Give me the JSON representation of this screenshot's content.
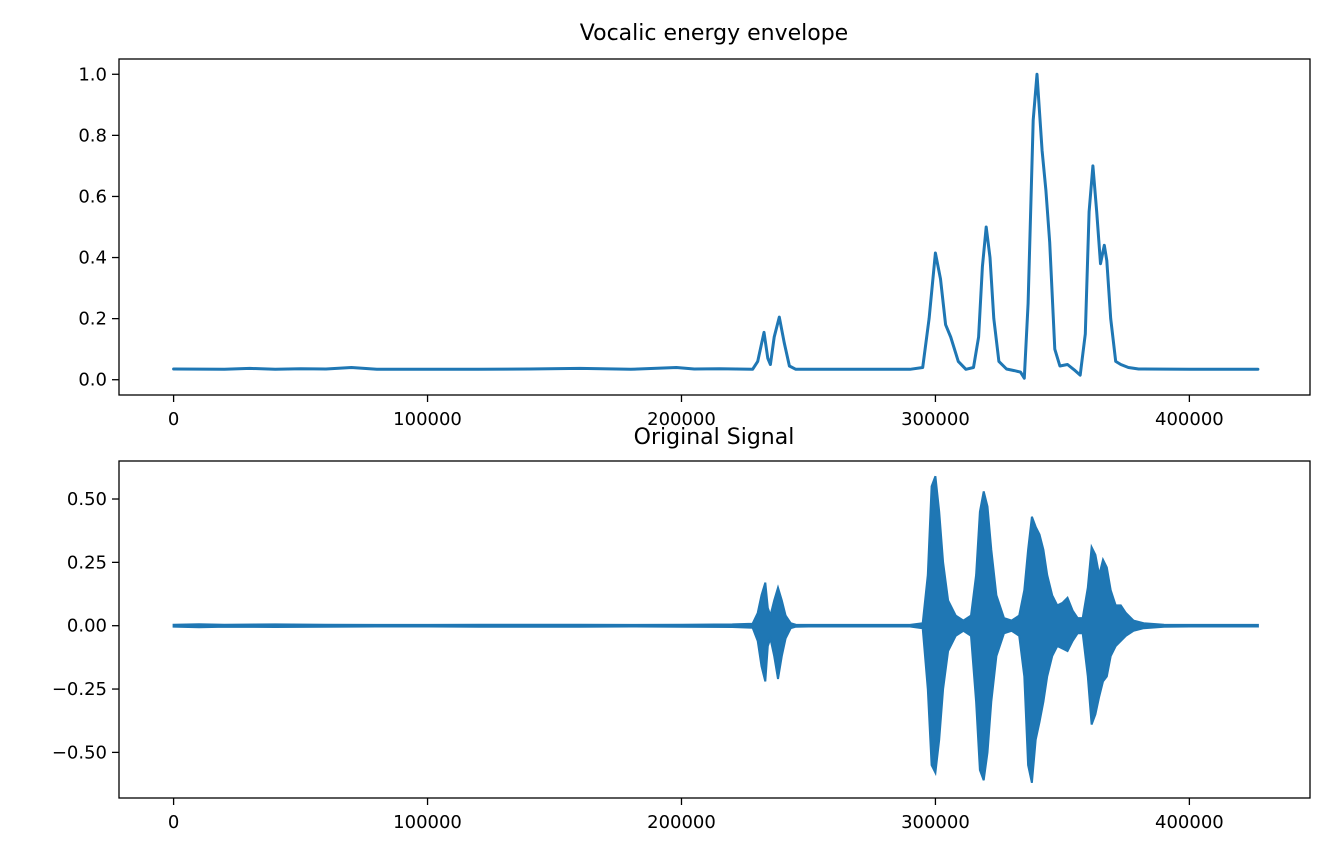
{
  "chart_data": [
    {
      "type": "line",
      "title": "Vocalic energy envelope",
      "xlabel": "",
      "ylabel": "",
      "xlim": [
        -21500,
        447500
      ],
      "ylim": [
        -0.05,
        1.05
      ],
      "xticks": [
        0,
        100000,
        200000,
        300000,
        400000
      ],
      "xtick_labels": [
        "0",
        "100000",
        "200000",
        "300000",
        "400000"
      ],
      "yticks": [
        0.0,
        0.2,
        0.4,
        0.6,
        0.8,
        1.0
      ],
      "ytick_labels": [
        "0.0",
        "0.2",
        "0.4",
        "0.6",
        "0.8",
        "1.0"
      ],
      "grid": false,
      "color": "#1f77b4",
      "series": [
        {
          "x": [
            0,
            20000,
            30000,
            40000,
            50000,
            60000,
            70000,
            80000,
            100000,
            120000,
            140000,
            160000,
            180000,
            198000,
            205000,
            215000,
            228000,
            230000,
            232500,
            234000,
            235000,
            236500,
            238500,
            240500,
            242500,
            245000,
            250000,
            270000,
            290000,
            295000,
            297500,
            300000,
            302000,
            304000,
            306000,
            309000,
            312000,
            315000,
            317000,
            318500,
            320000,
            321500,
            323000,
            325000,
            328000,
            331000,
            333500,
            335000,
            336500,
            338500,
            340000,
            342000,
            343500,
            345000,
            347000,
            349000,
            352000,
            355000,
            357000,
            359000,
            360500,
            362000,
            363500,
            365000,
            366500,
            367500,
            369000,
            371000,
            373000,
            376000,
            380000,
            400000,
            427000
          ],
          "y": [
            0.035,
            0.034,
            0.037,
            0.034,
            0.036,
            0.035,
            0.04,
            0.034,
            0.034,
            0.034,
            0.035,
            0.037,
            0.034,
            0.04,
            0.035,
            0.036,
            0.034,
            0.06,
            0.155,
            0.07,
            0.05,
            0.14,
            0.205,
            0.12,
            0.045,
            0.034,
            0.034,
            0.034,
            0.034,
            0.04,
            0.2,
            0.415,
            0.33,
            0.18,
            0.14,
            0.06,
            0.034,
            0.04,
            0.14,
            0.37,
            0.5,
            0.4,
            0.2,
            0.06,
            0.035,
            0.03,
            0.025,
            0.005,
            0.25,
            0.85,
            1.0,
            0.75,
            0.62,
            0.45,
            0.1,
            0.045,
            0.05,
            0.03,
            0.015,
            0.15,
            0.55,
            0.7,
            0.55,
            0.38,
            0.44,
            0.39,
            0.2,
            0.06,
            0.05,
            0.04,
            0.035,
            0.034,
            0.034
          ]
        }
      ]
    },
    {
      "type": "line",
      "title": "Original Signal",
      "xlabel": "",
      "ylabel": "",
      "xlim": [
        -21500,
        447500
      ],
      "ylim": [
        -0.68,
        0.65
      ],
      "xticks": [
        0,
        100000,
        200000,
        300000,
        400000
      ],
      "xtick_labels": [
        "0",
        "100000",
        "200000",
        "300000",
        "400000"
      ],
      "yticks": [
        -0.5,
        -0.25,
        0.0,
        0.25,
        0.5
      ],
      "ytick_labels": [
        "−0.50",
        "−0.25",
        "0.00",
        "0.25",
        "0.50"
      ],
      "grid": false,
      "color": "#1f77b4",
      "series": [
        {
          "x": [
            0,
            10000,
            20000,
            40000,
            60000,
            80000,
            100000,
            120000,
            140000,
            160000,
            180000,
            200000,
            220000,
            228000,
            230000,
            231500,
            233000,
            234000,
            235000,
            236500,
            238000,
            239500,
            241000,
            243000,
            245000,
            250000,
            270000,
            290000,
            295000,
            297000,
            298500,
            300000,
            301500,
            303000,
            305000,
            308000,
            311000,
            314000,
            316000,
            317500,
            319000,
            320500,
            322000,
            324000,
            327000,
            330000,
            333000,
            335000,
            336500,
            338000,
            339500,
            341000,
            342500,
            344000,
            346000,
            348000,
            350000,
            352000,
            354000,
            356000,
            358000,
            360000,
            361500,
            363000,
            364500,
            366000,
            367500,
            369000,
            371000,
            373000,
            375000,
            378000,
            382000,
            390000,
            400000,
            427000
          ],
          "ymax": [
            0.004,
            0.006,
            0.004,
            0.005,
            0.004,
            0.003,
            0.003,
            0.004,
            0.004,
            0.004,
            0.003,
            0.004,
            0.005,
            0.008,
            0.05,
            0.12,
            0.17,
            0.07,
            0.04,
            0.1,
            0.15,
            0.1,
            0.04,
            0.01,
            0.004,
            0.003,
            0.003,
            0.003,
            0.01,
            0.2,
            0.55,
            0.59,
            0.45,
            0.25,
            0.1,
            0.04,
            0.02,
            0.04,
            0.2,
            0.45,
            0.53,
            0.47,
            0.3,
            0.12,
            0.03,
            0.02,
            0.04,
            0.14,
            0.3,
            0.43,
            0.39,
            0.36,
            0.3,
            0.2,
            0.12,
            0.08,
            0.09,
            0.11,
            0.06,
            0.03,
            0.03,
            0.15,
            0.31,
            0.28,
            0.2,
            0.26,
            0.23,
            0.14,
            0.08,
            0.08,
            0.05,
            0.02,
            0.01,
            0.004,
            0.003,
            0.003
          ],
          "ymin": [
            -0.004,
            -0.006,
            -0.004,
            -0.005,
            -0.004,
            -0.003,
            -0.003,
            -0.004,
            -0.004,
            -0.004,
            -0.003,
            -0.004,
            -0.005,
            -0.008,
            -0.06,
            -0.16,
            -0.22,
            -0.08,
            -0.05,
            -0.12,
            -0.21,
            -0.12,
            -0.05,
            -0.01,
            -0.004,
            -0.003,
            -0.003,
            -0.003,
            -0.01,
            -0.25,
            -0.55,
            -0.58,
            -0.45,
            -0.25,
            -0.1,
            -0.04,
            -0.02,
            -0.04,
            -0.3,
            -0.57,
            -0.61,
            -0.5,
            -0.3,
            -0.12,
            -0.03,
            -0.02,
            -0.04,
            -0.2,
            -0.55,
            -0.62,
            -0.45,
            -0.38,
            -0.3,
            -0.2,
            -0.12,
            -0.08,
            -0.09,
            -0.1,
            -0.06,
            -0.03,
            -0.03,
            -0.2,
            -0.39,
            -0.35,
            -0.28,
            -0.22,
            -0.2,
            -0.12,
            -0.08,
            -0.06,
            -0.04,
            -0.02,
            -0.01,
            -0.004,
            -0.003,
            -0.003
          ]
        }
      ]
    }
  ]
}
